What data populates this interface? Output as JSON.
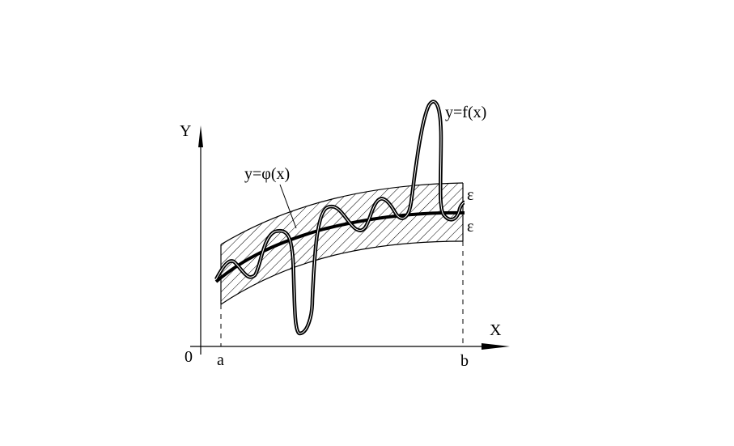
{
  "labels": {
    "y_axis": "Y",
    "x_axis": "X",
    "origin": "0",
    "a": "a",
    "b": "b",
    "f_curve": "y=f(x)",
    "phi_curve": "y=φ(x)",
    "epsilon_upper": "ε",
    "epsilon_lower": "ε"
  }
}
